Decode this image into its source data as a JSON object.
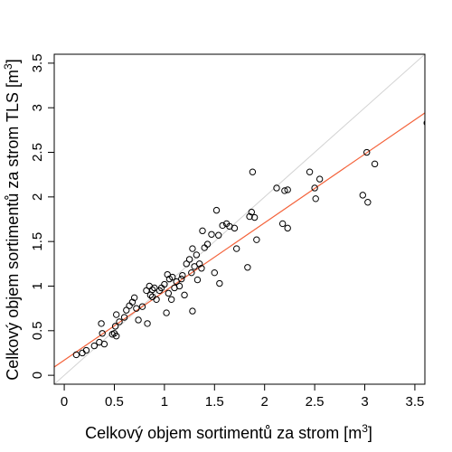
{
  "chart_data": {
    "type": "scatter",
    "xlabel": "Celkový objem sortimentů za strom [m",
    "xlabel_sup": "3",
    "xlabel_end": "]",
    "ylabel": "Celkový objem sortimentů za strom TLS [m",
    "ylabel_sup": "3",
    "ylabel_end": "]",
    "xlim": [
      -0.1,
      3.6
    ],
    "ylim": [
      -0.1,
      3.6
    ],
    "x_ticks": [
      0,
      0.5,
      1,
      1.5,
      2,
      2.5,
      3,
      3.5
    ],
    "x_tick_labels": [
      "0",
      "0.5",
      "1",
      "1.5",
      "2",
      "2.5",
      "3",
      "3.5"
    ],
    "y_ticks": [
      0,
      0.5,
      1,
      1.5,
      2,
      2.5,
      3,
      3.5
    ],
    "y_tick_labels": [
      "0",
      "0.5",
      "1",
      "1.5",
      "2",
      "2.5",
      "3",
      "3.5"
    ],
    "grid": false,
    "reference_line": {
      "slope": 1,
      "intercept": 0,
      "color": "#d3d3d3"
    },
    "fit_line": {
      "slope": 0.77,
      "intercept": 0.17,
      "color": "#f4623a"
    },
    "points": [
      {
        "x": 0.12,
        "y": 0.23
      },
      {
        "x": 0.18,
        "y": 0.25
      },
      {
        "x": 0.22,
        "y": 0.28
      },
      {
        "x": 0.3,
        "y": 0.33
      },
      {
        "x": 0.35,
        "y": 0.37
      },
      {
        "x": 0.4,
        "y": 0.35
      },
      {
        "x": 0.38,
        "y": 0.47
      },
      {
        "x": 0.37,
        "y": 0.58
      },
      {
        "x": 0.48,
        "y": 0.46
      },
      {
        "x": 0.5,
        "y": 0.47
      },
      {
        "x": 0.52,
        "y": 0.44
      },
      {
        "x": 0.51,
        "y": 0.55
      },
      {
        "x": 0.52,
        "y": 0.68
      },
      {
        "x": 0.55,
        "y": 0.6
      },
      {
        "x": 0.6,
        "y": 0.65
      },
      {
        "x": 0.62,
        "y": 0.73
      },
      {
        "x": 0.65,
        "y": 0.78
      },
      {
        "x": 0.68,
        "y": 0.82
      },
      {
        "x": 0.7,
        "y": 0.87
      },
      {
        "x": 0.72,
        "y": 0.75
      },
      {
        "x": 0.74,
        "y": 0.62
      },
      {
        "x": 0.78,
        "y": 0.77
      },
      {
        "x": 0.82,
        "y": 0.95
      },
      {
        "x": 0.83,
        "y": 0.58
      },
      {
        "x": 0.85,
        "y": 1.0
      },
      {
        "x": 0.86,
        "y": 0.9
      },
      {
        "x": 0.88,
        "y": 0.96
      },
      {
        "x": 0.88,
        "y": 0.88
      },
      {
        "x": 0.9,
        "y": 0.98
      },
      {
        "x": 0.92,
        "y": 0.85
      },
      {
        "x": 0.95,
        "y": 0.95
      },
      {
        "x": 0.97,
        "y": 0.98
      },
      {
        "x": 1.0,
        "y": 1.02
      },
      {
        "x": 1.02,
        "y": 0.7
      },
      {
        "x": 1.03,
        "y": 1.13
      },
      {
        "x": 1.04,
        "y": 0.92
      },
      {
        "x": 1.05,
        "y": 1.08
      },
      {
        "x": 1.07,
        "y": 0.85
      },
      {
        "x": 1.08,
        "y": 1.1
      },
      {
        "x": 1.1,
        "y": 0.98
      },
      {
        "x": 1.12,
        "y": 1.05
      },
      {
        "x": 1.15,
        "y": 1.0
      },
      {
        "x": 1.17,
        "y": 1.08
      },
      {
        "x": 1.18,
        "y": 1.12
      },
      {
        "x": 1.2,
        "y": 0.9
      },
      {
        "x": 1.22,
        "y": 1.25
      },
      {
        "x": 1.25,
        "y": 1.3
      },
      {
        "x": 1.27,
        "y": 1.15
      },
      {
        "x": 1.28,
        "y": 0.72
      },
      {
        "x": 1.28,
        "y": 1.42
      },
      {
        "x": 1.3,
        "y": 1.22
      },
      {
        "x": 1.32,
        "y": 1.35
      },
      {
        "x": 1.33,
        "y": 1.07
      },
      {
        "x": 1.35,
        "y": 1.25
      },
      {
        "x": 1.37,
        "y": 1.2
      },
      {
        "x": 1.38,
        "y": 1.62
      },
      {
        "x": 1.4,
        "y": 1.43
      },
      {
        "x": 1.43,
        "y": 1.47
      },
      {
        "x": 1.47,
        "y": 1.58
      },
      {
        "x": 1.5,
        "y": 1.15
      },
      {
        "x": 1.52,
        "y": 1.85
      },
      {
        "x": 1.54,
        "y": 1.57
      },
      {
        "x": 1.55,
        "y": 1.03
      },
      {
        "x": 1.58,
        "y": 1.68
      },
      {
        "x": 1.62,
        "y": 1.7
      },
      {
        "x": 1.65,
        "y": 1.67
      },
      {
        "x": 1.7,
        "y": 1.65
      },
      {
        "x": 1.72,
        "y": 1.42
      },
      {
        "x": 1.83,
        "y": 1.21
      },
      {
        "x": 1.85,
        "y": 1.78
      },
      {
        "x": 1.87,
        "y": 1.83
      },
      {
        "x": 1.88,
        "y": 2.28
      },
      {
        "x": 1.9,
        "y": 1.77
      },
      {
        "x": 1.92,
        "y": 1.52
      },
      {
        "x": 2.12,
        "y": 2.1
      },
      {
        "x": 2.18,
        "y": 1.7
      },
      {
        "x": 2.2,
        "y": 2.07
      },
      {
        "x": 2.23,
        "y": 2.08
      },
      {
        "x": 2.23,
        "y": 1.65
      },
      {
        "x": 2.45,
        "y": 2.28
      },
      {
        "x": 2.5,
        "y": 2.1
      },
      {
        "x": 2.51,
        "y": 1.98
      },
      {
        "x": 2.55,
        "y": 2.2
      },
      {
        "x": 2.98,
        "y": 2.02
      },
      {
        "x": 3.02,
        "y": 2.5
      },
      {
        "x": 3.03,
        "y": 1.94
      },
      {
        "x": 3.1,
        "y": 2.37
      },
      {
        "x": 3.62,
        "y": 2.83
      }
    ]
  }
}
